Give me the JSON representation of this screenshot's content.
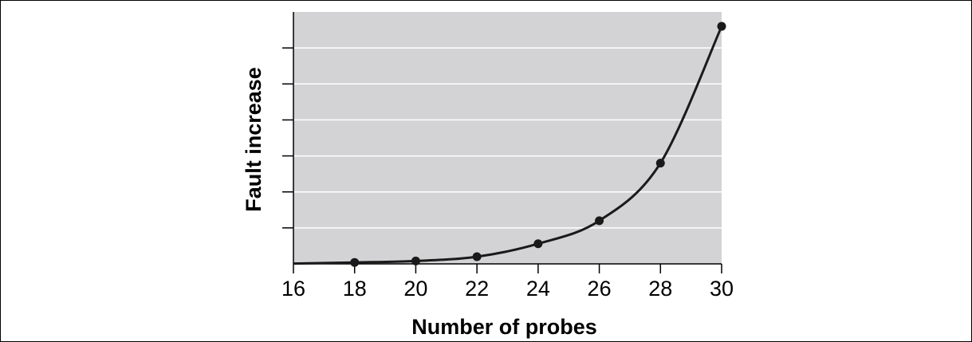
{
  "chart_data": {
    "type": "line",
    "xlabel": "Number of probes",
    "ylabel": "Fault increase",
    "x": [
      18,
      20,
      22,
      24,
      26,
      28,
      30
    ],
    "series": [
      {
        "values": [
          0.1,
          0.2,
          0.5,
          1.4,
          3.0,
          7.0,
          16.5
        ]
      }
    ],
    "xlim": [
      16,
      30
    ],
    "ylim": [
      0,
      17.5
    ],
    "xticks": [
      16,
      18,
      20,
      22,
      24,
      26,
      28,
      30
    ],
    "xtick_labels": [
      "16",
      "18",
      "20",
      "22",
      "24",
      "26",
      "28",
      "30"
    ],
    "yticks": [
      2.5,
      5,
      7.5,
      10,
      12.5,
      15
    ],
    "show_y_tick_labels": false,
    "grid": "horizontal",
    "legend": "none",
    "colors": {
      "plot_background": "#d3d3d5",
      "line": "#1a1a1a",
      "marker": "#1a1a1a",
      "grid": "#ffffff"
    }
  }
}
